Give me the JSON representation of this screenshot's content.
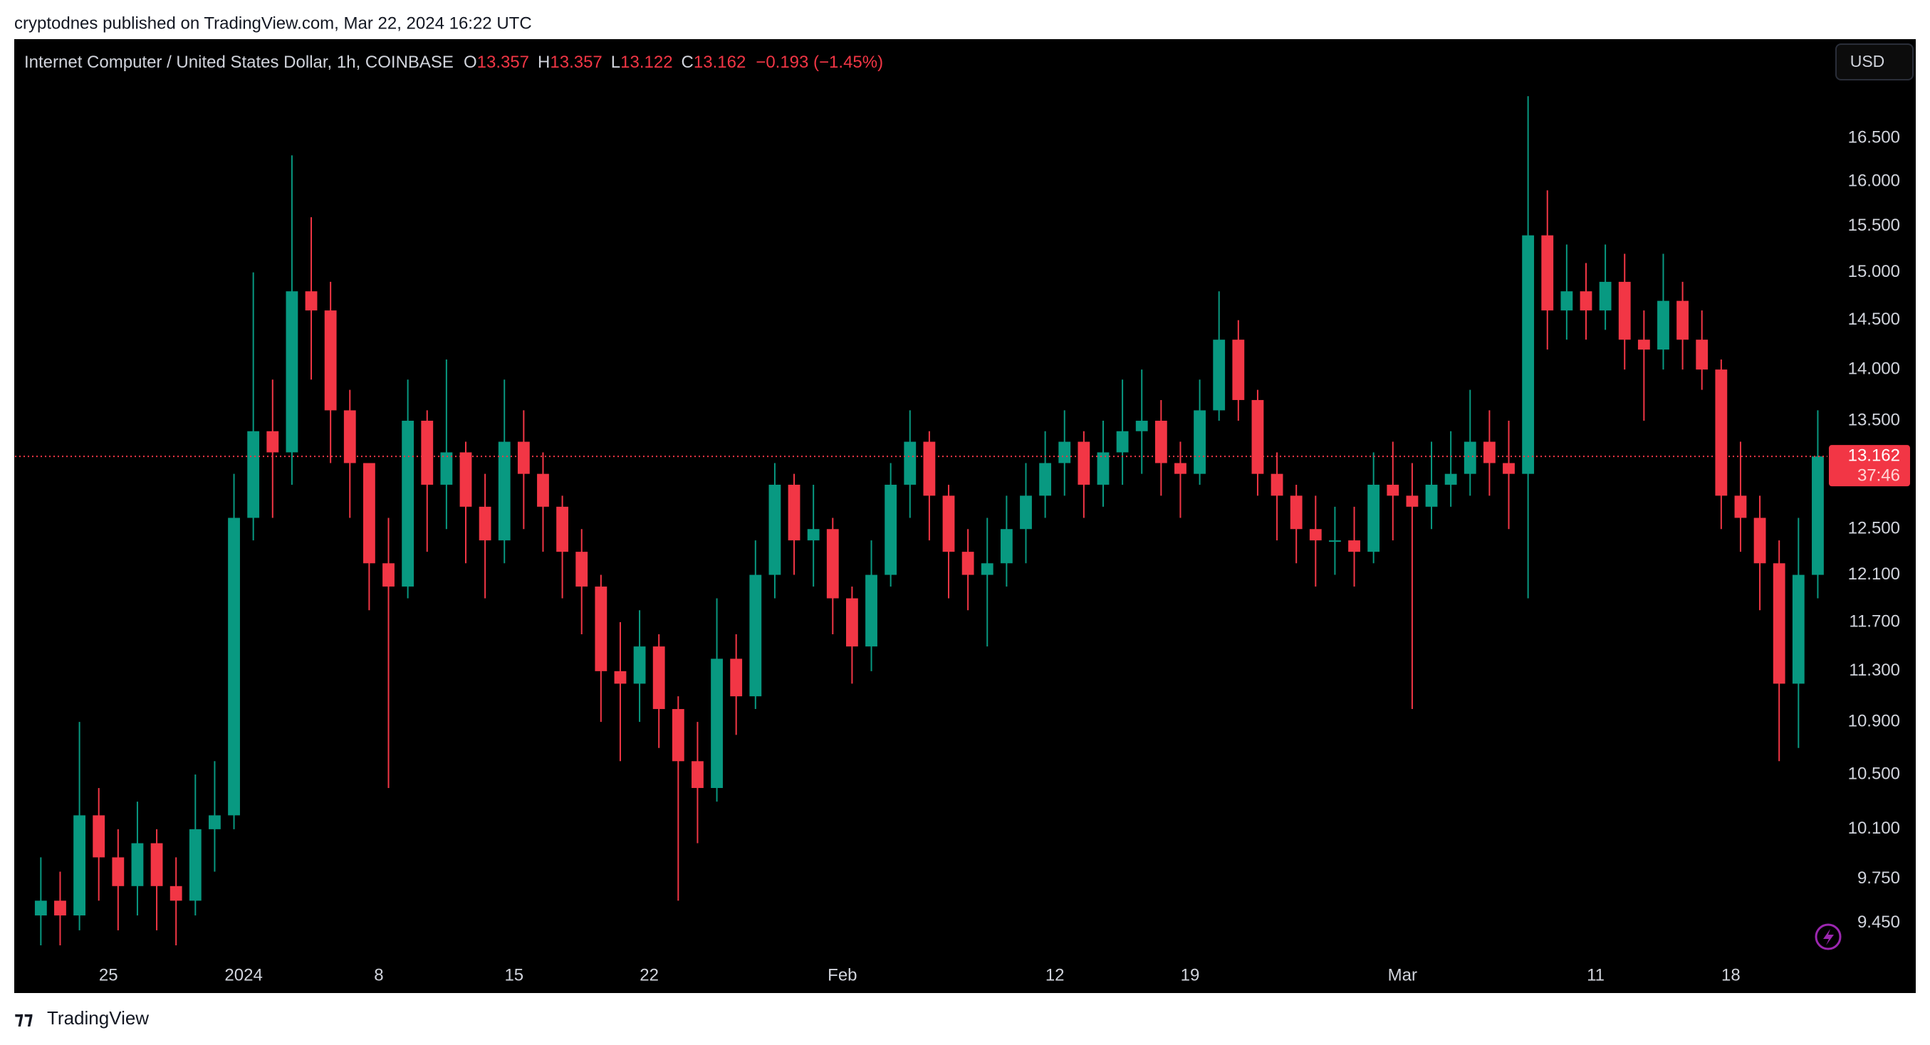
{
  "header": {
    "publisher": "cryptodnes published on TradingView.com, Mar 22, 2024 16:22 UTC"
  },
  "chart_data": {
    "type": "candlestick",
    "title": "Internet Computer / United States Dollar, 1h, COINBASE",
    "legend_ohlc": [
      {
        "label": "O",
        "value": 13.357
      },
      {
        "label": "H",
        "value": 13.357
      },
      {
        "label": "L",
        "value": 13.122
      },
      {
        "label": "C",
        "value": 13.162
      }
    ],
    "change": "−0.193 (−1.45%)",
    "currency": "USD",
    "up_color": "#089981",
    "down_color": "#f23645",
    "log_scale": true,
    "ylim": [
      9.23,
      17.2
    ],
    "yticks": [
      {
        "value": 16.5,
        "label": "16.500"
      },
      {
        "value": 16,
        "label": "16.000"
      },
      {
        "value": 15.5,
        "label": "15.500"
      },
      {
        "value": 15,
        "label": "15.000"
      },
      {
        "value": 14.5,
        "label": "14.500"
      },
      {
        "value": 14,
        "label": "14.000"
      },
      {
        "value": 13.5,
        "label": "13.500"
      },
      {
        "value": 12.5,
        "label": "12.500"
      },
      {
        "value": 12.1,
        "label": "12.100"
      },
      {
        "value": 11.7,
        "label": "11.700"
      },
      {
        "value": 11.3,
        "label": "11.300"
      },
      {
        "value": 10.9,
        "label": "10.900"
      },
      {
        "value": 10.5,
        "label": "10.500"
      },
      {
        "value": 10.1,
        "label": "10.100"
      },
      {
        "value": 9.75,
        "label": "9.750"
      },
      {
        "value": 9.45,
        "label": "9.450"
      }
    ],
    "xlim": [
      -0.84,
      93
    ],
    "xticks": [
      {
        "value": 4,
        "label": "25"
      },
      {
        "value": 11,
        "label": "2024"
      },
      {
        "value": 18,
        "label": "8"
      },
      {
        "value": 25,
        "label": "15"
      },
      {
        "value": 32,
        "label": "22"
      },
      {
        "value": 42,
        "label": "Feb"
      },
      {
        "value": 53,
        "label": "12"
      },
      {
        "value": 60,
        "label": "19"
      },
      {
        "value": 71,
        "label": "Mar"
      },
      {
        "value": 81,
        "label": "11"
      },
      {
        "value": 88,
        "label": "18"
      }
    ],
    "open": [
      9.5,
      9.6,
      9.5,
      10.2,
      9.9,
      9.7,
      10.0,
      9.7,
      9.6,
      10.1,
      10.2,
      12.6,
      13.4,
      13.2,
      14.8,
      14.6,
      13.6,
      13.1,
      12.2,
      12.0,
      13.5,
      12.9,
      13.2,
      12.7,
      12.4,
      13.3,
      13.0,
      12.7,
      12.3,
      12.0,
      11.3,
      11.2,
      11.5,
      11.0,
      10.6,
      10.4,
      11.4,
      11.1,
      12.1,
      12.9,
      12.4,
      12.5,
      11.9,
      11.5,
      12.1,
      12.9,
      13.3,
      12.8,
      12.3,
      12.1,
      12.2,
      12.5,
      12.8,
      13.1,
      13.3,
      12.9,
      13.2,
      13.4,
      13.5,
      13.1,
      13.0,
      13.6,
      14.3,
      13.7,
      13.0,
      12.8,
      12.5,
      12.4,
      12.4,
      12.3,
      12.9,
      12.8,
      12.7,
      12.9,
      13.0,
      13.3,
      13.1,
      13.0,
      15.4,
      14.6,
      14.8,
      14.6,
      14.9,
      14.3,
      14.2,
      14.7,
      14.3,
      14.0,
      12.8,
      12.6,
      12.2,
      11.2,
      12.1
    ],
    "high": [
      9.9,
      9.8,
      10.9,
      10.4,
      10.1,
      10.3,
      10.1,
      9.9,
      10.5,
      10.6,
      13.0,
      15.0,
      13.9,
      16.3,
      15.6,
      14.9,
      13.8,
      13.1,
      12.6,
      13.9,
      13.6,
      14.1,
      13.3,
      13.0,
      13.9,
      13.6,
      13.2,
      12.8,
      12.5,
      12.1,
      11.7,
      11.8,
      11.6,
      11.1,
      10.9,
      11.9,
      11.6,
      12.4,
      13.1,
      13.0,
      12.9,
      12.6,
      12.0,
      12.4,
      13.1,
      13.6,
      13.4,
      12.9,
      12.5,
      12.6,
      12.8,
      13.1,
      13.4,
      13.6,
      13.4,
      13.5,
      13.9,
      14.0,
      13.7,
      13.3,
      13.9,
      14.8,
      14.5,
      13.8,
      13.2,
      12.9,
      12.8,
      12.7,
      12.7,
      13.2,
      13.3,
      13.1,
      13.3,
      13.4,
      13.8,
      13.6,
      13.5,
      17.0,
      15.9,
      15.3,
      15.1,
      15.3,
      15.2,
      14.6,
      15.2,
      14.9,
      14.6,
      14.1,
      13.3,
      12.8,
      12.4,
      12.6,
      13.6
    ],
    "low": [
      9.3,
      9.3,
      9.4,
      9.6,
      9.4,
      9.5,
      9.4,
      9.3,
      9.5,
      9.8,
      10.1,
      12.4,
      12.6,
      12.9,
      13.9,
      13.1,
      12.6,
      11.8,
      10.4,
      11.9,
      12.3,
      12.5,
      12.2,
      11.9,
      12.2,
      12.5,
      12.3,
      11.9,
      11.6,
      10.9,
      10.6,
      10.9,
      10.7,
      9.6,
      10.0,
      10.3,
      10.8,
      11.0,
      11.9,
      12.1,
      12.0,
      11.6,
      11.2,
      11.3,
      12.0,
      12.6,
      12.4,
      11.9,
      11.8,
      11.5,
      12.0,
      12.2,
      12.6,
      12.8,
      12.6,
      12.7,
      12.9,
      13.0,
      12.8,
      12.6,
      12.9,
      13.5,
      13.5,
      12.8,
      12.4,
      12.2,
      12.0,
      12.1,
      12.0,
      12.2,
      12.4,
      11.0,
      12.5,
      12.7,
      12.8,
      12.8,
      12.5,
      11.9,
      14.2,
      14.3,
      14.3,
      14.4,
      14.0,
      13.5,
      14.0,
      14.0,
      13.8,
      12.5,
      12.3,
      11.8,
      10.6,
      10.7,
      11.9
    ],
    "close": [
      9.6,
      9.5,
      10.2,
      9.9,
      9.7,
      10.0,
      9.7,
      9.6,
      10.1,
      10.2,
      12.6,
      13.4,
      13.2,
      14.8,
      14.6,
      13.6,
      13.1,
      12.2,
      12.0,
      13.5,
      12.9,
      13.2,
      12.7,
      12.4,
      13.3,
      13.0,
      12.7,
      12.3,
      12.0,
      11.3,
      11.2,
      11.5,
      11.0,
      10.6,
      10.4,
      11.4,
      11.1,
      12.1,
      12.9,
      12.4,
      12.5,
      11.9,
      11.5,
      12.1,
      12.9,
      13.3,
      12.8,
      12.3,
      12.1,
      12.2,
      12.5,
      12.8,
      13.1,
      13.3,
      12.9,
      13.2,
      13.4,
      13.5,
      13.1,
      13.0,
      13.6,
      14.3,
      13.7,
      13.0,
      12.8,
      12.5,
      12.4,
      12.4,
      12.3,
      12.9,
      12.8,
      12.7,
      12.9,
      13.0,
      13.3,
      13.1,
      13.0,
      15.4,
      14.6,
      14.8,
      14.6,
      14.9,
      14.3,
      14.2,
      14.7,
      14.3,
      14.0,
      12.8,
      12.6,
      12.2,
      11.2,
      12.1,
      13.162
    ],
    "last_price": 13.162,
    "countdown": "37:46"
  },
  "footer": {
    "brand": "TradingView"
  }
}
